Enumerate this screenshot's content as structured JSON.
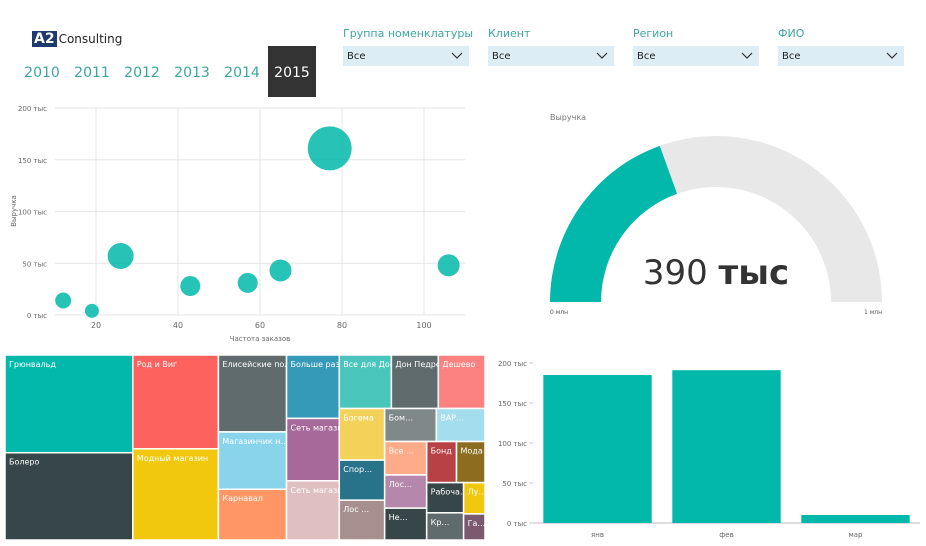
{
  "logo": {
    "mark": "A2",
    "text": "Consulting"
  },
  "years": {
    "items": [
      "2010",
      "2011",
      "2012",
      "2013",
      "2014",
      "2015"
    ],
    "selected": "2015"
  },
  "filters": [
    {
      "label": "Группа номенклатуры",
      "value": "Все"
    },
    {
      "label": "Клиент",
      "value": "Все"
    },
    {
      "label": "Регион",
      "value": "Все"
    },
    {
      "label": "ФИО",
      "value": "Все"
    }
  ],
  "chart_data": [
    {
      "type": "scatter",
      "x_label": "Частота заказов",
      "y_label": "Выручка",
      "color": "#01b8aa",
      "grid": true,
      "x": [
        12,
        19,
        26,
        43,
        57,
        65,
        77,
        106
      ],
      "values": [
        14,
        4,
        57,
        28,
        31,
        43,
        161,
        48
      ],
      "sizes": [
        64,
        49,
        169,
        100,
        100,
        121,
        484,
        121
      ],
      "xlim": [
        10,
        110
      ],
      "xticks": [
        20,
        40,
        60,
        80,
        100
      ],
      "ylim": [
        0,
        200
      ],
      "yticks": [
        {
          "value": 0,
          "label": "0 тыс"
        },
        {
          "value": 50,
          "label": "50 тыс"
        },
        {
          "value": 100,
          "label": "100 тыс"
        },
        {
          "value": 150,
          "label": "150 тыс"
        },
        {
          "value": 200,
          "label": "200 тыс"
        }
      ]
    },
    {
      "type": "gauge",
      "title": "Выручка",
      "value": 390,
      "value_label": "390",
      "unit": "тыс",
      "min": {
        "value": 0,
        "label": "0 млн"
      },
      "max": {
        "value": 1000,
        "label": "1 млн"
      },
      "color": "#01b8aa",
      "track_color": "#e8e8e8"
    },
    {
      "type": "treemap",
      "categories": [
        "Грюнвальд",
        "Болеро",
        "Род и Виг",
        "Модный магазин",
        "Елисейские поля",
        "Магазинчик н…",
        "Карнавал",
        "Больше разм…",
        "Сеть магазин…",
        "Сеть магазин…",
        "Все для Дома",
        "Дон Педро",
        "Дешево",
        "Богема",
        "Спор…",
        "Лос …",
        "Бом…",
        "ВАР…",
        "Все …",
        "Лос…",
        "Не…",
        "Бонд",
        "Мода с…",
        "Рабоча…",
        "Кр…",
        "Лу…",
        "Га…"
      ],
      "values": [
        11200,
        10000,
        7200,
        7000,
        4700,
        3500,
        3100,
        3000,
        2950,
        2800,
        2500,
        2250,
        2240,
        2100,
        1630,
        1620,
        1530,
        1440,
        1260,
        1250,
        1200,
        1100,
        1050,
        1000,
        900,
        600,
        500
      ],
      "colors": [
        "#01b8aa",
        "#374649",
        "#fd625e",
        "#f2c80f",
        "#5f6b6d",
        "#8ad4eb",
        "#fe9666",
        "#3599b8",
        "#a66999",
        "#dfbfbf",
        "#4ac5bb",
        "#5f6b6d",
        "#fb8281",
        "#f4d25a",
        "#28738a",
        "#a78f8f",
        "#7f898a",
        "#a4ddee",
        "#fdab89",
        "#b687ac",
        "#374649",
        "#b84146",
        "#8c6d1f",
        "#374649",
        "#5f6b6d",
        "#f2c80f",
        "#7b5a6e"
      ]
    },
    {
      "type": "bar",
      "color": "#01b8aa",
      "categories": [
        "янв",
        "фев",
        "мар"
      ],
      "values": [
        185,
        191,
        10
      ],
      "ylim": [
        0,
        200
      ],
      "yticks": [
        {
          "value": 0,
          "label": "0 тыс"
        },
        {
          "value": 50,
          "label": "50 тыс"
        },
        {
          "value": 100,
          "label": "100 тыс"
        },
        {
          "value": 150,
          "label": "150 тыс"
        },
        {
          "value": 200,
          "label": "200 тыс"
        }
      ]
    }
  ]
}
